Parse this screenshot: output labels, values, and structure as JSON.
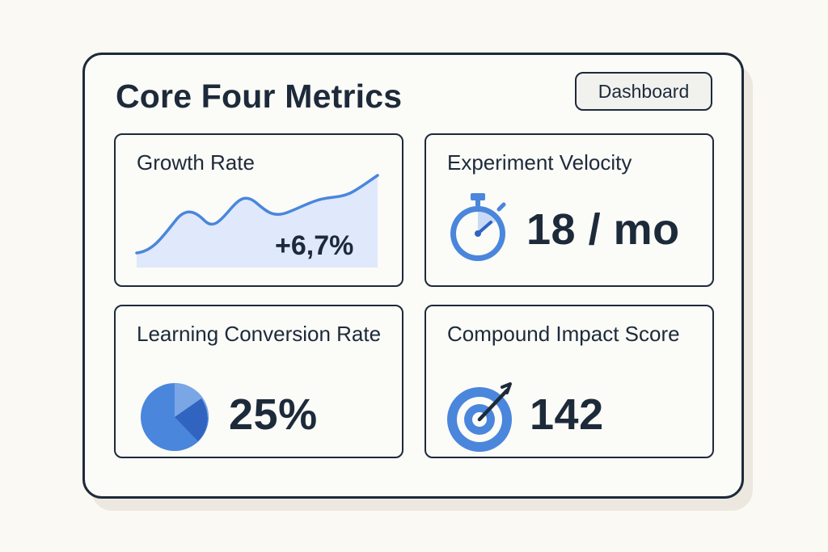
{
  "header": {
    "title": "Core Four Metrics",
    "dashboard_button": "Dashboard"
  },
  "cards": {
    "growth_rate": {
      "label": "Growth Rate",
      "value": "+6,7%",
      "icon": "line-chart-icon"
    },
    "experiment_velocity": {
      "label": "Experiment Velocity",
      "value": "18 / mo",
      "icon": "stopwatch-icon"
    },
    "learning_conversion_rate": {
      "label": "Learning Conversion Rate",
      "value": "25%",
      "icon": "pie-chart-icon"
    },
    "compound_impact_score": {
      "label": "Compound Impact Score",
      "value": "142",
      "icon": "target-icon"
    }
  },
  "colors": {
    "accent_blue": "#4a86dc",
    "accent_dark_blue": "#3064c0",
    "accent_light_blue": "#dfe9fb",
    "text_dark": "#1d2a3a",
    "background": "#fbf9f4"
  }
}
